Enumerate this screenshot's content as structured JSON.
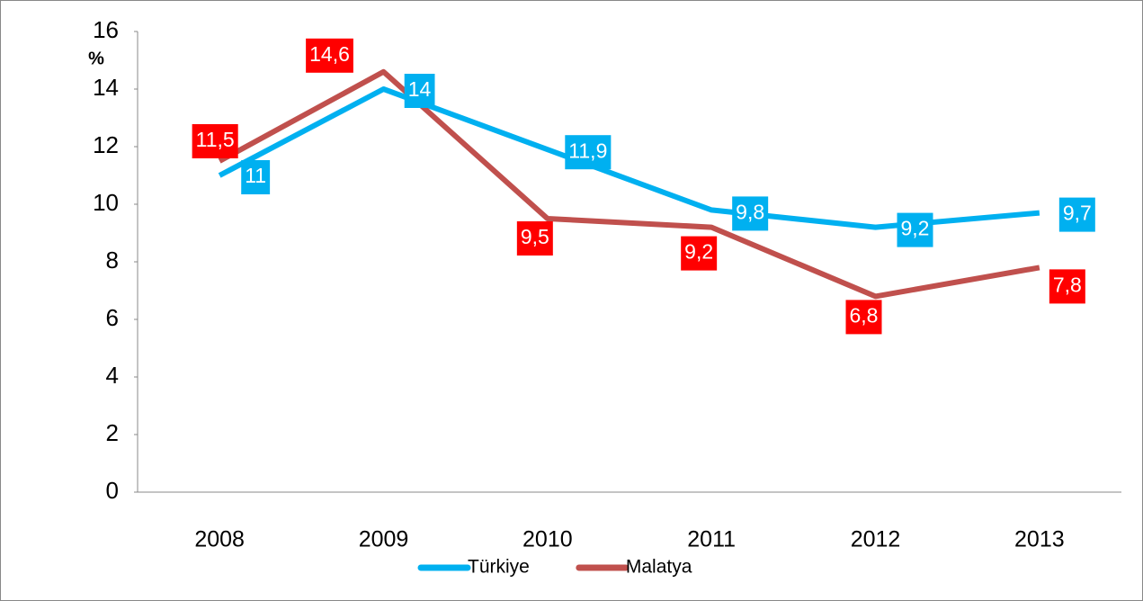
{
  "chart_data": {
    "type": "line",
    "y_label": "%",
    "categories": [
      "2008",
      "2009",
      "2010",
      "2011",
      "2012",
      "2013"
    ],
    "series": [
      {
        "name": "Türkiye",
        "color": "#00b0f0",
        "label_color": "#00b0f0",
        "values": [
          11,
          14,
          11.9,
          9.8,
          9.2,
          9.7
        ],
        "value_labels": [
          "11",
          "14",
          "11,9",
          "9,8",
          "9,2",
          "9,7"
        ]
      },
      {
        "name": "Malatya",
        "color": "#c0504d",
        "label_color": "#ff0000",
        "values": [
          11.5,
          14.6,
          9.5,
          9.2,
          6.8,
          7.8
        ],
        "value_labels": [
          "11,5",
          "14,6",
          "9,5",
          "9,2",
          "6,8",
          "7,8"
        ]
      }
    ],
    "ylim": [
      0,
      16
    ],
    "yticks": [
      0,
      2,
      4,
      6,
      8,
      10,
      12,
      14,
      16
    ],
    "grid": false,
    "legend": "bottom"
  }
}
